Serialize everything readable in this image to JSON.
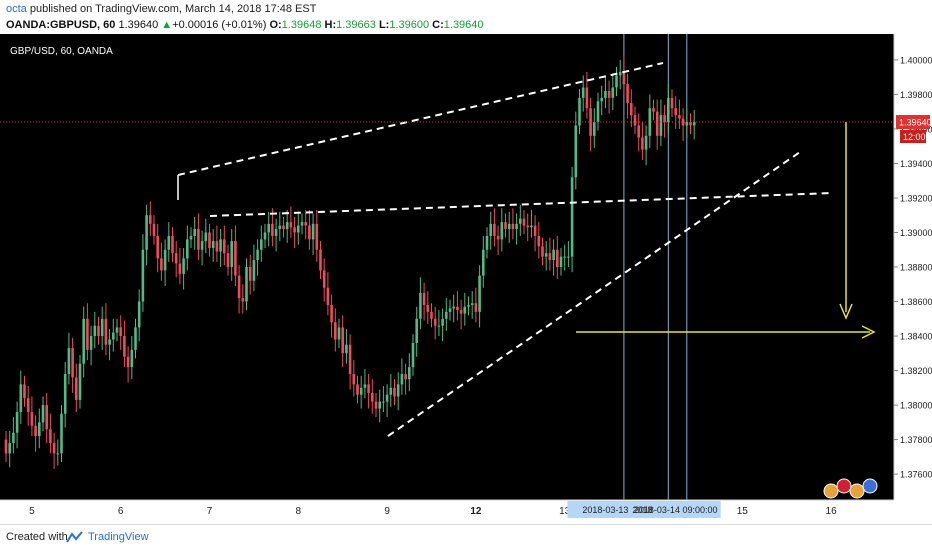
{
  "header": {
    "author": "octa",
    "published_text": "published on TradingView.com, March 14, 2018 17:48 EST",
    "symbol_interval": "OANDA:GBPUSD, 60",
    "last": "1.39640",
    "change": "+0.00016 (+0.01%)",
    "o_label": "O:",
    "o_val": "1.39648",
    "h_label": "H:",
    "h_val": "1.39663",
    "l_label": "L:",
    "l_val": "1.39600",
    "c_label": "C:",
    "c_val": "1.39640"
  },
  "footer": {
    "created": "Created with",
    "brand": "TradingView"
  },
  "colors": {
    "background": "#000000",
    "up": "#53b987",
    "down": "#eb4d5c",
    "trendline": "#ffffff",
    "arrow": "#e8e23a",
    "price_line": "#e03131",
    "axis_bg": "#ffffff",
    "time_highlight": "#b5d7f5",
    "vline": "#7fb2d6"
  },
  "chart_data": {
    "type": "candlestick",
    "title": "GBP/USD, 60, OANDA",
    "xlabel": "",
    "ylabel": "",
    "ylim": [
      1.3745,
      1.4015
    ],
    "grid": false,
    "y_ticks": [
      "1.40000",
      "1.39800",
      "1.39600",
      "1.39400",
      "1.39200",
      "1.39000",
      "1.38800",
      "1.38600",
      "1.38400",
      "1.38200",
      "1.38000",
      "1.37800",
      "1.37600"
    ],
    "x_ticks": [
      {
        "label": "5",
        "i": 7
      },
      {
        "label": "6",
        "i": 31
      },
      {
        "label": "7",
        "i": 55
      },
      {
        "label": "8",
        "i": 79
      },
      {
        "label": "9",
        "i": 103
      },
      {
        "label": "12",
        "i": 127
      },
      {
        "label": "13",
        "i": 151
      },
      {
        "label": "15",
        "i": 199
      },
      {
        "label": "16",
        "i": 223
      }
    ],
    "current_price": {
      "value": 1.3964,
      "label": "1.39640",
      "countdown": "12:00"
    },
    "time_labels": [
      {
        "text": "2018-03-13",
        "i": 162
      },
      {
        "text": "2018",
        "i": 172
      },
      {
        "text": "2018-03-14 09:00:00",
        "i": 181
      }
    ],
    "vlines": [
      167,
      179,
      184
    ],
    "close": [
      1.3772,
      1.3778,
      1.3784,
      1.3796,
      1.3812,
      1.3804,
      1.3796,
      1.3788,
      1.3782,
      1.379,
      1.38,
      1.3786,
      1.3778,
      1.3772,
      1.3772,
      1.3795,
      1.3818,
      1.3833,
      1.3816,
      1.3803,
      1.3824,
      1.385,
      1.3832,
      1.384,
      1.3846,
      1.384,
      1.385,
      1.3835,
      1.3838,
      1.3842,
      1.3845,
      1.384,
      1.3828,
      1.3822,
      1.3832,
      1.3845,
      1.386,
      1.389,
      1.391,
      1.3905,
      1.3898,
      1.3885,
      1.3878,
      1.389,
      1.3898,
      1.3888,
      1.3882,
      1.3876,
      1.3885,
      1.3896,
      1.3898,
      1.3902,
      1.389,
      1.3895,
      1.39,
      1.3891,
      1.3895,
      1.3889,
      1.3896,
      1.3888,
      1.388,
      1.3895,
      1.3875,
      1.3862,
      1.386,
      1.388,
      1.3872,
      1.3884,
      1.389,
      1.3896,
      1.39,
      1.3905,
      1.3898,
      1.3902,
      1.3904,
      1.3902,
      1.3906,
      1.3903,
      1.39,
      1.3904,
      1.3906,
      1.3904,
      1.3896,
      1.3905,
      1.389,
      1.3878,
      1.3868,
      1.3858,
      1.3848,
      1.3838,
      1.3845,
      1.383,
      1.3835,
      1.3818,
      1.3812,
      1.3806,
      1.381,
      1.3812,
      1.3807,
      1.3802,
      1.3798,
      1.3802,
      1.3802,
      1.3806,
      1.381,
      1.3805,
      1.3812,
      1.3818,
      1.3815,
      1.3822,
      1.3836,
      1.385,
      1.3865,
      1.3858,
      1.3854,
      1.385,
      1.3846,
      1.3846,
      1.385,
      1.3854,
      1.3856,
      1.3857,
      1.3855,
      1.3853,
      1.3857,
      1.3858,
      1.3859,
      1.3854,
      1.3875,
      1.389,
      1.3898,
      1.3905,
      1.3898,
      1.3896,
      1.3906,
      1.3902,
      1.3905,
      1.3902,
      1.3905,
      1.3908,
      1.3904,
      1.3903,
      1.3904,
      1.3898,
      1.3892,
      1.3886,
      1.3888,
      1.3884,
      1.389,
      1.388,
      1.3886,
      1.3886,
      1.3886,
      1.3932,
      1.3962,
      1.3978,
      1.3984,
      1.3972,
      1.3956,
      1.3964,
      1.3976,
      1.3978,
      1.3982,
      1.3978,
      1.3984,
      1.3991,
      1.3993,
      1.3986,
      1.3975,
      1.3968,
      1.3962,
      1.3955,
      1.3948,
      1.3956,
      1.3972,
      1.397,
      1.3956,
      1.3968,
      1.3964,
      1.3978,
      1.3972,
      1.3968,
      1.3966,
      1.3962,
      1.3964,
      1.3962,
      1.3964
    ]
  }
}
